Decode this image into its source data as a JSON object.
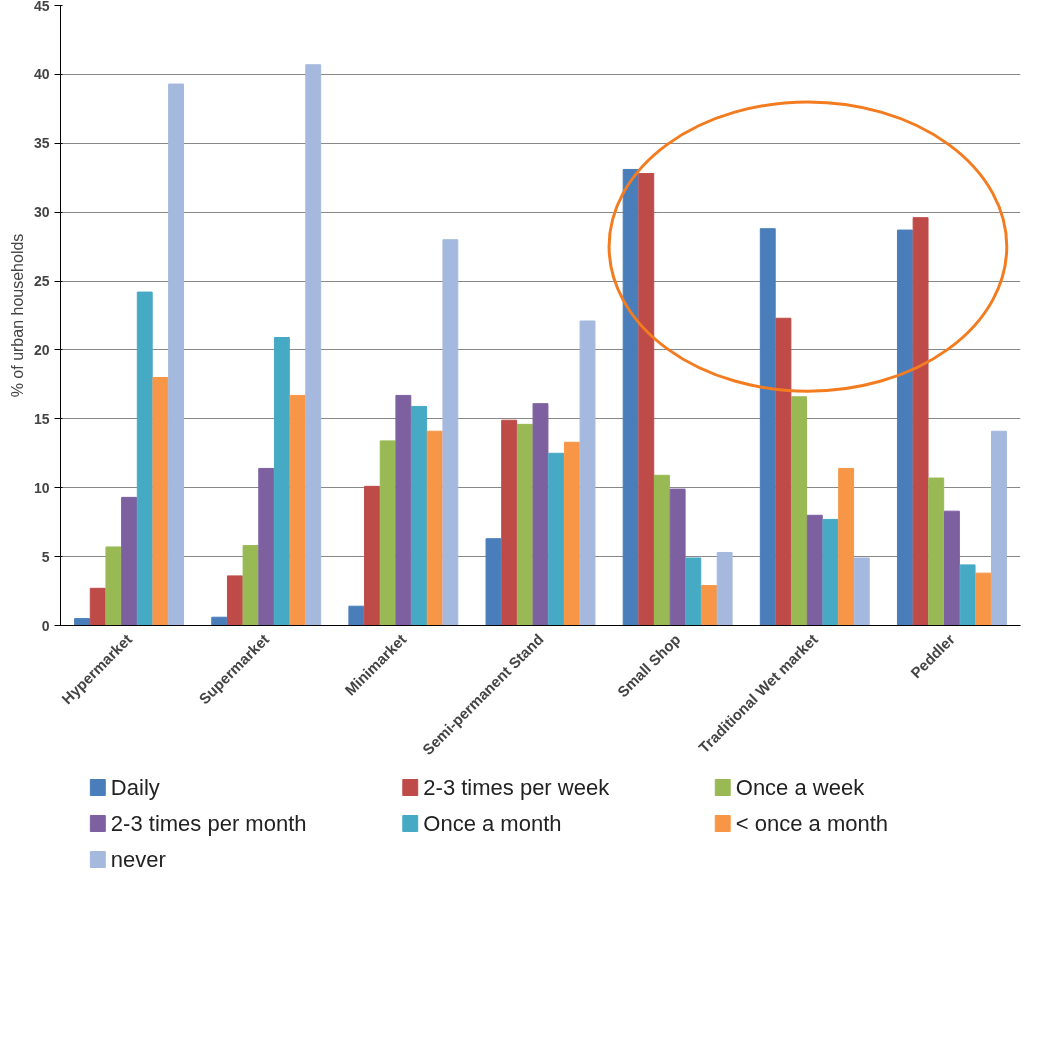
{
  "chart_data": {
    "type": "bar",
    "ylabel": "% of urban households",
    "categories": [
      "Hypermarket",
      "Supermarket",
      "Minimarket",
      "Semi-permanent Stand",
      "Small Shop",
      "Traditional Wet market",
      "Peddler"
    ],
    "series": [
      {
        "name": "Daily",
        "color": "#4a7ebb",
        "values": [
          0.5,
          0.6,
          1.4,
          6.3,
          33.1,
          28.8,
          28.7
        ]
      },
      {
        "name": "2-3 times per week",
        "color": "#be4b48",
        "values": [
          2.7,
          3.6,
          10.1,
          14.9,
          32.8,
          22.3,
          29.6
        ]
      },
      {
        "name": "Once a week",
        "color": "#98b954",
        "values": [
          5.7,
          5.8,
          13.4,
          14.6,
          10.9,
          16.6,
          10.7
        ]
      },
      {
        "name": "2-3 times per month",
        "color": "#7d60a0",
        "values": [
          9.3,
          11.4,
          16.7,
          16.1,
          9.9,
          8.0,
          8.3
        ]
      },
      {
        "name": "Once a month",
        "color": "#46aac5",
        "values": [
          24.2,
          20.9,
          15.9,
          12.5,
          4.9,
          7.7,
          4.4
        ]
      },
      {
        "name": "< once a month",
        "color": "#f79646",
        "values": [
          18.0,
          16.7,
          14.1,
          13.3,
          2.9,
          11.4,
          3.8
        ]
      },
      {
        "name": "never",
        "color": "#a5b9de",
        "values": [
          39.3,
          40.7,
          28.0,
          22.1,
          5.3,
          4.9,
          14.1
        ]
      }
    ],
    "ylim": [
      0,
      45
    ],
    "yticks": [
      0,
      5,
      10,
      15,
      20,
      25,
      30,
      35,
      40,
      45
    ],
    "grid": "y",
    "legend": "bottom"
  }
}
